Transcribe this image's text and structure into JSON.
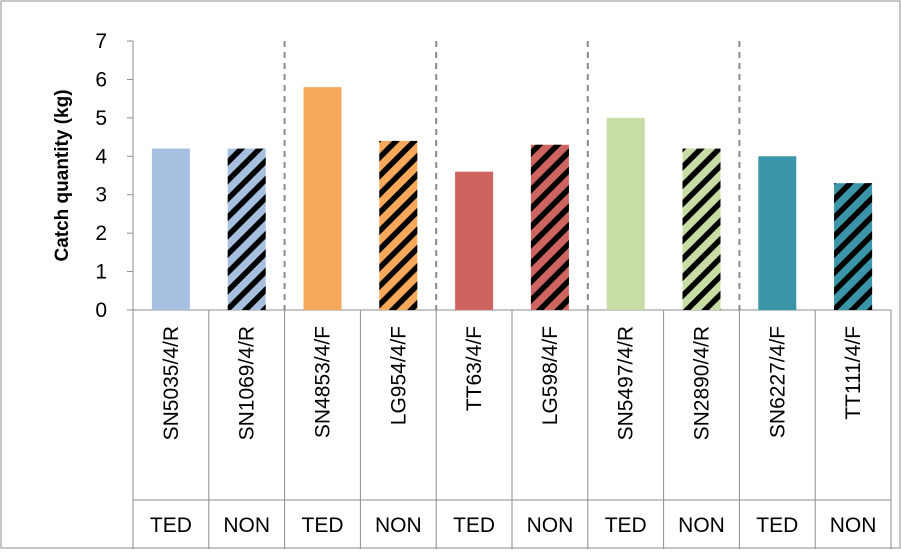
{
  "chart_data": {
    "type": "bar",
    "title": "",
    "xlabel": "",
    "ylabel": "Catch quantity (kg)",
    "ylim": [
      0,
      7
    ],
    "yticks": [
      "0",
      "1",
      "2",
      "3",
      "4",
      "5",
      "6",
      "7"
    ],
    "grid": false,
    "legend": "none",
    "categories": [
      "SN5035/4/R",
      "SN1069/4/R",
      "SN4853/4/F",
      "LG954/4/F",
      "TT63/4/F",
      "LG598/4/F",
      "SN5497/4/R",
      "SN2890/4/R",
      "SN6227/4/F",
      "TT111/4/F"
    ],
    "groups": [
      "TED",
      "NON",
      "TED",
      "NON",
      "TED",
      "NON",
      "TED",
      "NON",
      "TED",
      "NON"
    ],
    "values": [
      4.2,
      4.2,
      5.8,
      4.4,
      3.6,
      4.3,
      5.0,
      4.2,
      4.0,
      3.3
    ],
    "bar_colors": [
      "#a7c0e0",
      "#a7c0e0",
      "#f7a85a",
      "#f7a85a",
      "#cd6460",
      "#cd6460",
      "#c8dca5",
      "#c8dca5",
      "#3a95a9",
      "#3a95a9"
    ],
    "hatched": [
      false,
      true,
      false,
      true,
      false,
      true,
      false,
      true,
      false,
      true
    ],
    "pair_separators": "dashed"
  }
}
